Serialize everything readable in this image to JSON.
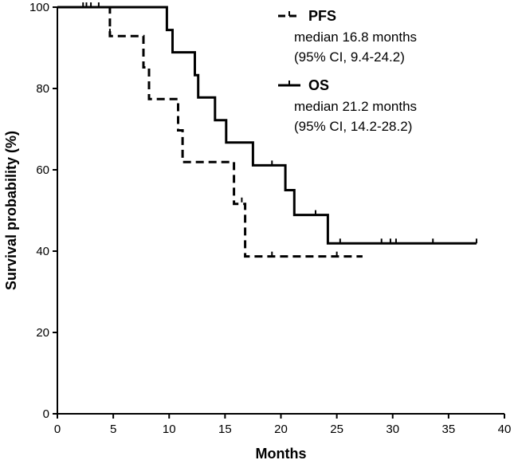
{
  "chart_data": {
    "type": "line",
    "subtype": "kaplan-meier",
    "title": "",
    "xlabel": "Months",
    "ylabel": "Survival probability (%)",
    "xlim": [
      0,
      40
    ],
    "ylim": [
      0,
      100
    ],
    "xticks": [
      0,
      5,
      10,
      15,
      20,
      25,
      30,
      35,
      40
    ],
    "yticks": [
      0,
      20,
      40,
      60,
      80,
      100
    ],
    "grid": false,
    "legend_position": "top-right",
    "series": [
      {
        "name": "PFS",
        "style": "dashed",
        "median": "median 16.8 months",
        "ci": "(95% CI, 9.4-24.2)",
        "steps": [
          [
            0,
            100
          ],
          [
            4.7,
            100
          ],
          [
            4.7,
            92.9
          ],
          [
            7.7,
            92.9
          ],
          [
            7.7,
            85.2
          ],
          [
            8.2,
            85.2
          ],
          [
            8.2,
            77.4
          ],
          [
            10.8,
            77.4
          ],
          [
            10.8,
            69.7
          ],
          [
            11.2,
            69.7
          ],
          [
            11.2,
            61.9
          ],
          [
            15.8,
            61.9
          ],
          [
            15.8,
            51.6
          ],
          [
            16.8,
            51.6
          ],
          [
            16.8,
            38.7
          ],
          [
            27.3,
            38.7
          ]
        ],
        "censored": [
          [
            2.3,
            100
          ],
          [
            2.6,
            100
          ],
          [
            3.0,
            100
          ],
          [
            3.7,
            100
          ],
          [
            4.7,
            93.5
          ],
          [
            16.5,
            52
          ],
          [
            19.2,
            38.7
          ],
          [
            25.0,
            38.7
          ]
        ]
      },
      {
        "name": "OS",
        "style": "solid",
        "median": "median 21.2 months",
        "ci": "(95% CI, 14.2-28.2)",
        "steps": [
          [
            0,
            100
          ],
          [
            9.8,
            100
          ],
          [
            9.8,
            94.4
          ],
          [
            10.3,
            94.4
          ],
          [
            10.3,
            88.9
          ],
          [
            12.3,
            88.9
          ],
          [
            12.3,
            83.3
          ],
          [
            12.6,
            83.3
          ],
          [
            12.6,
            77.8
          ],
          [
            14.1,
            77.8
          ],
          [
            14.1,
            72.2
          ],
          [
            15.1,
            72.2
          ],
          [
            15.1,
            66.7
          ],
          [
            17.5,
            66.7
          ],
          [
            17.5,
            61.1
          ],
          [
            20.4,
            61.1
          ],
          [
            20.4,
            55.0
          ],
          [
            21.2,
            55.0
          ],
          [
            21.2,
            48.9
          ],
          [
            24.2,
            48.9
          ],
          [
            24.2,
            41.9
          ],
          [
            37.5,
            41.9
          ]
        ],
        "censored": [
          [
            19.2,
            61.1
          ],
          [
            23.1,
            48.9
          ],
          [
            25.3,
            41.9
          ],
          [
            29.0,
            41.9
          ],
          [
            29.8,
            41.9
          ],
          [
            30.3,
            41.9
          ],
          [
            33.6,
            41.9
          ],
          [
            37.5,
            41.9
          ]
        ]
      }
    ]
  }
}
